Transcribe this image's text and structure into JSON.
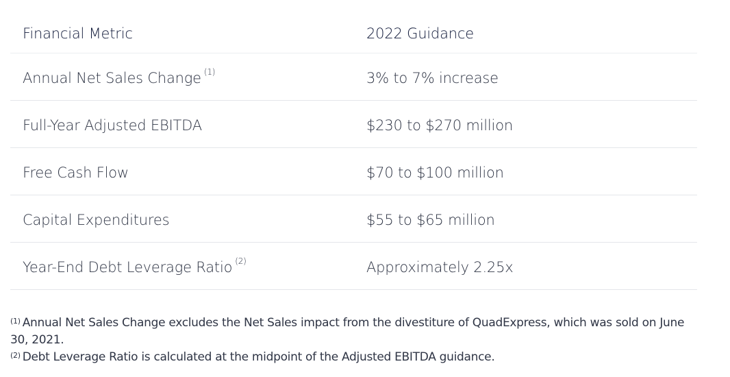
{
  "table": {
    "headers": [
      "Financial Metric",
      "2022 Guidance"
    ],
    "rows": [
      {
        "metric": "Annual Net Sales Change",
        "note": "(1)",
        "guidance": "3% to 7% increase"
      },
      {
        "metric": "Full-Year Adjusted EBITDA",
        "note": "",
        "guidance": "$230 to $270 million"
      },
      {
        "metric": "Free Cash Flow",
        "note": "",
        "guidance": "$70 to $100 million"
      },
      {
        "metric": "Capital Expenditures",
        "note": "",
        "guidance": "$55 to $65 million"
      },
      {
        "metric": "Year-End Debt Leverage Ratio",
        "note": "(2)",
        "guidance": "Approximately 2.25x"
      }
    ]
  },
  "footnotes": [
    {
      "marker": "(1)",
      "text": "Annual Net Sales Change excludes the Net Sales impact from the divestiture of QuadExpress, which was sold on June 30, 2021."
    },
    {
      "marker": "(2)",
      "text": "Debt Leverage Ratio is calculated at the midpoint of the Adjusted EBITDA guidance."
    }
  ]
}
